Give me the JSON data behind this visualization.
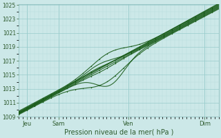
{
  "xlabel": "Pression niveau de la mer( hPa )",
  "bg_color": "#cce8e8",
  "plot_bg_color": "#cce8e8",
  "grid_major_color": "#99cccc",
  "grid_minor_color": "#b8dddd",
  "line_color": "#1a5c1a",
  "ylim": [
    1009,
    1025
  ],
  "xlim": [
    0,
    100
  ],
  "yticks": [
    1009,
    1011,
    1013,
    1015,
    1017,
    1019,
    1021,
    1023,
    1025
  ],
  "xtick_labels": [
    "Jeu",
    "Sam",
    "Ven",
    "Dim"
  ],
  "xtick_positions": [
    4,
    20,
    55,
    93
  ]
}
